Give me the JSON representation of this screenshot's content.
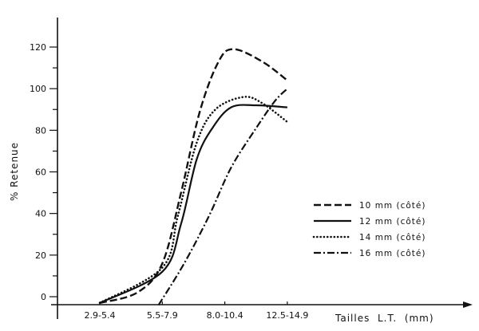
{
  "chart_data": {
    "type": "line",
    "title": "",
    "xlabel": "Tailles L.T. (mm)",
    "ylabel": "% Retenue",
    "categories": [
      "2.9-5.4",
      "5.5-7.9",
      "8.0-10.4",
      "12.5-14.9"
    ],
    "yticks": [
      0,
      20,
      40,
      60,
      80,
      100,
      120
    ],
    "ylim": [
      -3,
      135
    ],
    "grid": false,
    "legend_position": "center-right",
    "series": [
      {
        "name": "10 mm (côté)",
        "style": "dashed",
        "points": [
          [
            0,
            -3
          ],
          [
            0.6,
            2
          ],
          [
            1.0,
            16
          ],
          [
            1.3,
            50
          ],
          [
            1.6,
            89
          ],
          [
            1.9,
            113
          ],
          [
            2.14,
            119
          ],
          [
            2.6,
            113
          ],
          [
            3.0,
            104
          ]
        ]
      },
      {
        "name": "12 mm (côté)",
        "style": "solid",
        "points": [
          [
            0,
            -3
          ],
          [
            1.0,
            12
          ],
          [
            1.3,
            35
          ],
          [
            1.55,
            66
          ],
          [
            1.8,
            81
          ],
          [
            2.1,
            91
          ],
          [
            2.5,
            92
          ],
          [
            3.0,
            91
          ]
        ]
      },
      {
        "name": "14 mm (côté)",
        "style": "dotted",
        "points": [
          [
            0,
            -3
          ],
          [
            1.0,
            14
          ],
          [
            1.25,
            39
          ],
          [
            1.55,
            74
          ],
          [
            1.85,
            90
          ],
          [
            2.3,
            96
          ],
          [
            2.6,
            93
          ],
          [
            3.0,
            84
          ]
        ]
      },
      {
        "name": "16 mm (côté)",
        "style": "dash-dot",
        "points": [
          [
            0.94,
            -4
          ],
          [
            1.35,
            16
          ],
          [
            1.75,
            39
          ],
          [
            2.1,
            62
          ],
          [
            2.5,
            81
          ],
          [
            2.8,
            94
          ],
          [
            3.0,
            100
          ]
        ]
      }
    ]
  },
  "axes": {
    "y_title": "% Retenue",
    "x_title": "Tailles  L.T.  (mm)",
    "y_ticks": [
      "0",
      "20",
      "40",
      "60",
      "80",
      "100",
      "120"
    ],
    "x_ticks": [
      "2.9-5.4",
      "5.5-7.9",
      "8.0-10.4",
      "12.5-14.9"
    ]
  },
  "legend": [
    {
      "label": "10 mm (côté)",
      "style": "dashed"
    },
    {
      "label": "12 mm (côté)",
      "style": "solid"
    },
    {
      "label": "14 mm (côté)",
      "style": "dotted"
    },
    {
      "label": "16 mm (côté)",
      "style": "dash-dot"
    }
  ]
}
